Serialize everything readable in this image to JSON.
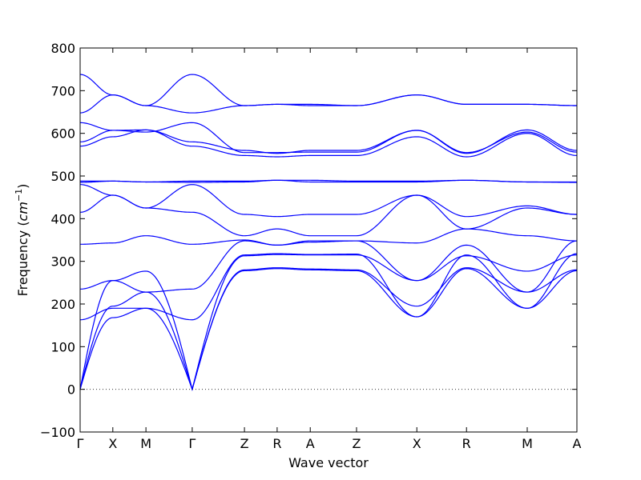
{
  "chart_data": {
    "type": "line",
    "xlabel": "Wave vector",
    "ylabel": "Frequency (cm⁻¹)",
    "ylabel_parts": {
      "main": "Frequency (",
      "unit": "cm",
      "exponent": "−1",
      "close": ")"
    },
    "ylim": [
      -100,
      800
    ],
    "yticks": [
      -100,
      0,
      100,
      200,
      300,
      400,
      500,
      600,
      700,
      800
    ],
    "xlim": [
      0,
      11.7
    ],
    "grid": false,
    "zero_line": {
      "y": 0,
      "style": "dotted"
    },
    "line_color": "#0000ff",
    "k_points": [
      {
        "label": "Γ",
        "x": 0.0
      },
      {
        "label": "X",
        "x": 0.77
      },
      {
        "label": "M",
        "x": 1.55
      },
      {
        "label": "Γ",
        "x": 2.64
      },
      {
        "label": "Z",
        "x": 3.87
      },
      {
        "label": "R",
        "x": 4.64
      },
      {
        "label": "A",
        "x": 5.42
      },
      {
        "label": "Z",
        "x": 6.51
      },
      {
        "label": "X",
        "x": 7.93
      },
      {
        "label": "R",
        "x": 9.1
      },
      {
        "label": "M",
        "x": 10.53
      },
      {
        "label": "A",
        "x": 11.7
      }
    ],
    "band_nodes": [
      0,
      0.77,
      1.55,
      2.64,
      3.87,
      4.64,
      5.42,
      6.51,
      7.93,
      9.1,
      10.53,
      11.7
    ],
    "series": [
      {
        "values": [
          0,
          168,
          190,
          0,
          278,
          283,
          280,
          278,
          170,
          283,
          190,
          278
        ]
      },
      {
        "values": [
          0,
          195,
          228,
          0,
          280,
          285,
          282,
          280,
          195,
          285,
          228,
          280
        ]
      },
      {
        "values": [
          0,
          255,
          277,
          0,
          313,
          316,
          315,
          315,
          255,
          313,
          277,
          315
        ]
      },
      {
        "values": [
          163,
          190,
          190,
          163,
          315,
          318,
          316,
          317,
          170,
          315,
          190,
          318
        ]
      },
      {
        "values": [
          235,
          255,
          228,
          235,
          348,
          338,
          348,
          348,
          255,
          338,
          228,
          348
        ]
      },
      {
        "values": [
          340,
          343,
          360,
          340,
          350,
          338,
          345,
          348,
          343,
          376,
          360,
          348
        ]
      },
      {
        "values": [
          415,
          455,
          425,
          415,
          360,
          376,
          360,
          360,
          455,
          376,
          425,
          410
        ]
      },
      {
        "values": [
          480,
          455,
          425,
          480,
          410,
          405,
          410,
          410,
          455,
          405,
          430,
          410
        ]
      },
      {
        "values": [
          485,
          488,
          486,
          485,
          486,
          490,
          486,
          486,
          486,
          490,
          486,
          485
        ]
      },
      {
        "values": [
          488,
          488,
          486,
          488,
          488,
          490,
          490,
          488,
          488,
          490,
          486,
          486
        ]
      },
      {
        "values": [
          570,
          592,
          608,
          570,
          548,
          545,
          548,
          548,
          592,
          545,
          600,
          548
        ]
      },
      {
        "values": [
          580,
          607,
          608,
          580,
          560,
          553,
          560,
          560,
          607,
          553,
          608,
          560
        ]
      },
      {
        "values": [
          625,
          607,
          603,
          625,
          555,
          555,
          556,
          556,
          607,
          555,
          603,
          556
        ]
      },
      {
        "values": [
          648,
          690,
          665,
          648,
          665,
          668,
          665,
          665,
          690,
          668,
          668,
          665
        ]
      },
      {
        "values": [
          738,
          690,
          665,
          738,
          665,
          668,
          668,
          665,
          690,
          668,
          668,
          665
        ]
      }
    ]
  }
}
